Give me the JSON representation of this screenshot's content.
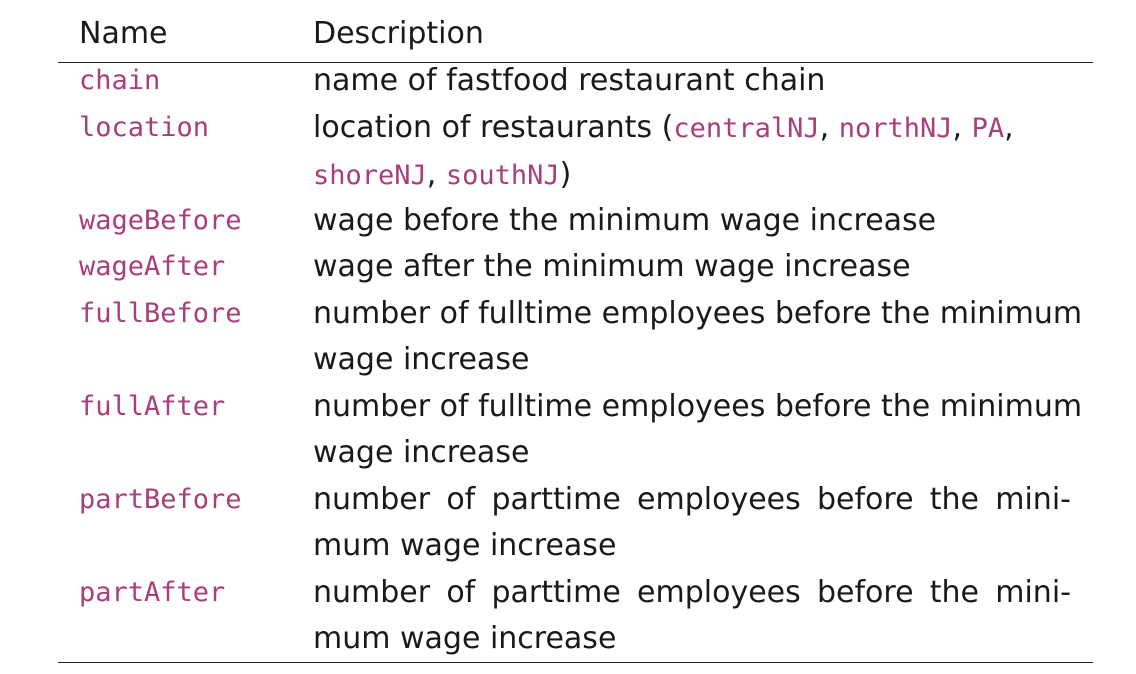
{
  "accent_color": "#a83e7e",
  "header": {
    "name": "Name",
    "description": "Description"
  },
  "rows": [
    {
      "name": "chain",
      "description": [
        "name of fastfood restaurant chain"
      ]
    },
    {
      "name": "location",
      "description_parts": {
        "line1_prefix": "location of restaurants (",
        "centralNJ": "centralNJ",
        "sep1": ", ",
        "northNJ": "northNJ",
        "sep2": ", ",
        "PA": "PA",
        "sep3": ",",
        "shoreNJ": "shoreNJ",
        "sep4": ", ",
        "southNJ": "southNJ",
        "close": ")"
      }
    },
    {
      "name": "wageBefore",
      "description": [
        "wage before the minimum wage increase"
      ]
    },
    {
      "name": "wageAfter",
      "description": [
        "wage after the minimum wage increase"
      ]
    },
    {
      "name": "fullBefore",
      "description": [
        "number of fulltime employees before the minimum",
        "wage increase"
      ]
    },
    {
      "name": "fullAfter",
      "description": [
        "number of fulltime employees before the minimum",
        "wage increase"
      ]
    },
    {
      "name": "partBefore",
      "description": [
        "number of parttime employees before the mini-",
        "mum wage increase"
      ]
    },
    {
      "name": "partAfter",
      "description": [
        "number of parttime employees before the mini-",
        "mum wage increase"
      ]
    }
  ]
}
